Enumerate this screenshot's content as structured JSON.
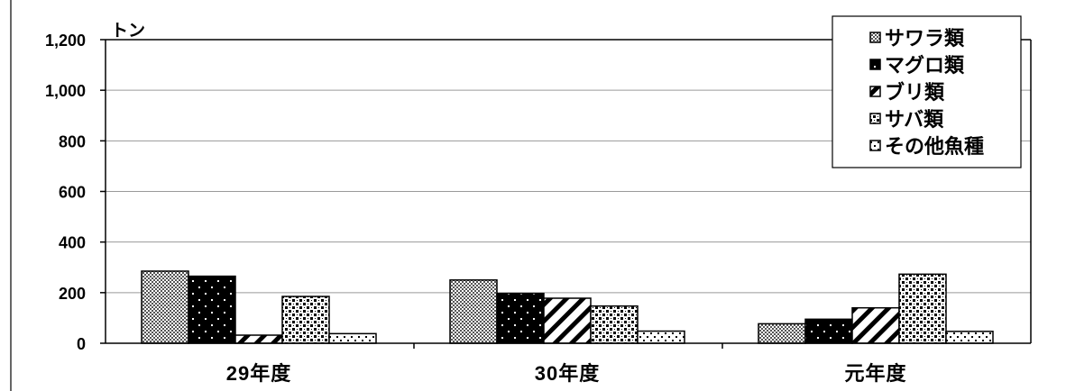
{
  "chart_data": {
    "type": "bar",
    "title": "",
    "ylabel": "トン",
    "xlabel": "",
    "ylim": [
      0,
      1200
    ],
    "yticks": [
      0,
      200,
      400,
      600,
      800,
      1000,
      1200
    ],
    "ytick_labels": [
      "0",
      "200",
      "400",
      "600",
      "800",
      "1,000",
      "1,200"
    ],
    "categories": [
      "29年度",
      "30年度",
      "元年度"
    ],
    "series": [
      {
        "name": "サワラ類",
        "pattern": "crosshatch",
        "values": [
          285,
          250,
          77
        ]
      },
      {
        "name": "マグロ類",
        "pattern": "black-dots",
        "values": [
          265,
          197,
          95
        ]
      },
      {
        "name": "ブリ類",
        "pattern": "diagonal",
        "values": [
          32,
          178,
          140
        ]
      },
      {
        "name": "サバ類",
        "pattern": "checker",
        "values": [
          185,
          147,
          273
        ]
      },
      {
        "name": "その他魚種",
        "pattern": "sparse-dots",
        "values": [
          38,
          48,
          47
        ]
      }
    ],
    "grid": true,
    "legend": "top-right",
    "colors": {
      "ink": "#000000",
      "grid": "#9a9a9a",
      "background": "#ffffff"
    }
  }
}
